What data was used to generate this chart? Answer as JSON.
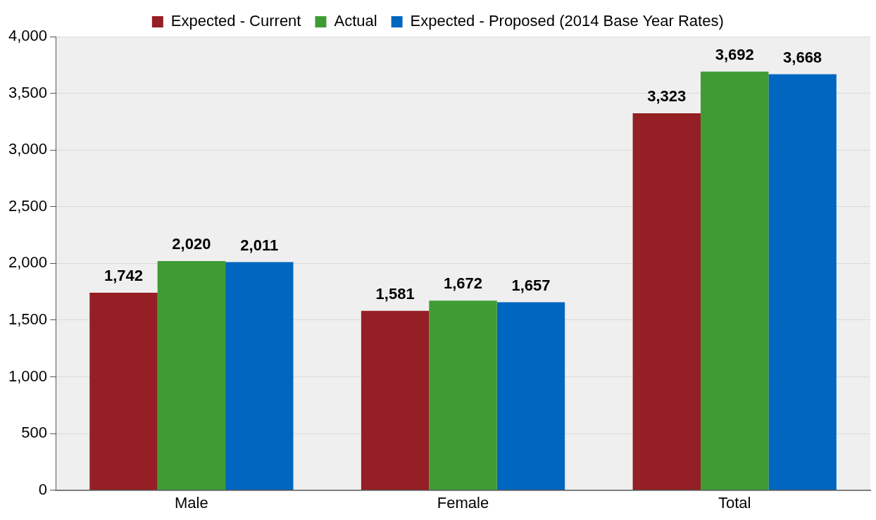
{
  "chart_data": {
    "type": "bar",
    "categories": [
      "Male",
      "Female",
      "Total"
    ],
    "series": [
      {
        "name": "Expected - Current",
        "color": "#941f24",
        "values": [
          1742,
          1581,
          3323
        ],
        "value_labels": [
          "1,742",
          "1,581",
          "3,323"
        ]
      },
      {
        "name": "Actual",
        "color": "#3f9c35",
        "values": [
          2020,
          1672,
          3692
        ],
        "value_labels": [
          "2,020",
          "1,672",
          "3,692"
        ]
      },
      {
        "name": "Expected - Proposed (2014 Base Year Rates)",
        "color": "#0066bf",
        "values": [
          2011,
          1657,
          3668
        ],
        "value_labels": [
          "2,011",
          "1,657",
          "3,668"
        ]
      }
    ],
    "ylim": [
      0,
      4000
    ],
    "yticks": [
      0,
      500,
      {
        "value": 1000,
        "label": "1,000"
      },
      {
        "value": 1500,
        "label": "1,500"
      },
      {
        "value": 2000,
        "label": "2,000"
      },
      {
        "value": 2500,
        "label": "2,500"
      },
      {
        "value": 3000,
        "label": "3,000"
      },
      {
        "value": 3500,
        "label": "3,500"
      },
      {
        "value": 4000,
        "label": "4,000"
      }
    ],
    "grid": "y",
    "legend": "top"
  }
}
